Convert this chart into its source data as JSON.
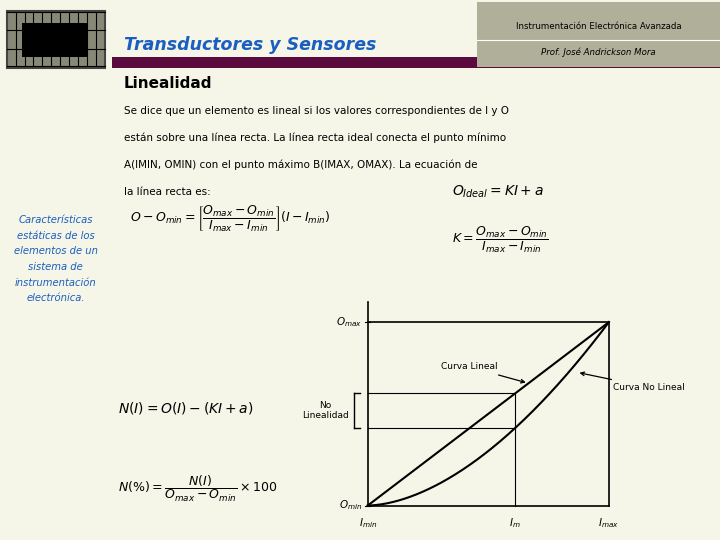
{
  "bg_left_color": "#c8c89a",
  "bg_main_color": "#f5f5e8",
  "header_bar_color": "#5a0a3c",
  "subtitle_bg": "#b0b09a",
  "title_text": "Transductores y Sensores",
  "title_color": "#1a5fbf",
  "subtitle1": "Instrumentación Electrónica Avanzada",
  "subtitle2": "Prof. José Andrickson Mora",
  "section_title": "Linealidad",
  "left_panel_text": "Características\nestáticas de los\nelementos de un\nsistema de\ninstrumentación\nelectrónica.",
  "left_panel_color": "#1a5fbf",
  "paragraph_line1": "Se dice que un elemento es lineal si los valores correspondientes de I y O",
  "paragraph_line2": "están sobre una línea recta. La línea recta ideal conecta el punto mínimo",
  "paragraph_line3": "A(IMIN, OMIN) con el punto máximo B(IMAX, OMAX). La ecuación de",
  "paragraph_line4": "la línea recta es:",
  "curva_lineal_label": "Curva Lineal",
  "curva_no_lineal_label": "Curva No Lineal",
  "no_linealidad_label": "No\nLinealidad",
  "graph_bg": "#eeeedd"
}
